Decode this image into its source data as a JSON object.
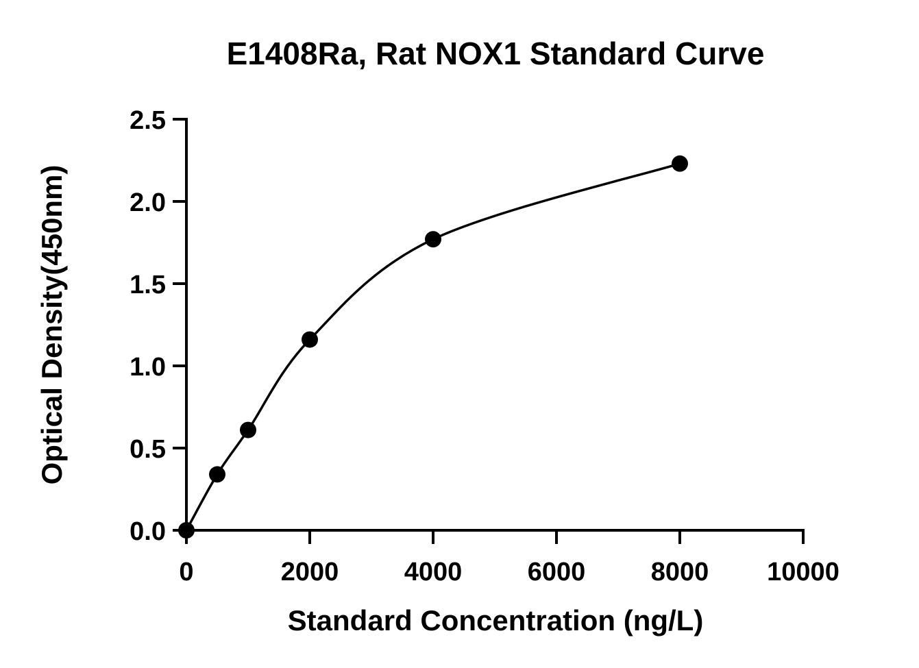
{
  "chart_data": {
    "type": "scatter",
    "title": "E1408Ra, Rat NOX1 Standard Curve",
    "xlabel": "Standard Concentration (ng/L)",
    "ylabel": "Optical Density(450nm)",
    "xlim": [
      0,
      10000
    ],
    "ylim": [
      0,
      2.5
    ],
    "xticks": [
      0,
      2000,
      4000,
      6000,
      8000,
      10000
    ],
    "yticks": [
      0.0,
      0.5,
      1.0,
      1.5,
      2.0,
      2.5
    ],
    "xtick_labels": [
      "0",
      "2000",
      "4000",
      "6000",
      "8000",
      "10000"
    ],
    "ytick_labels": [
      "0.0",
      "0.5",
      "1.0",
      "1.5",
      "2.0",
      "2.5"
    ],
    "grid": false,
    "fit_curve": "smooth",
    "series": [
      {
        "x": [
          0,
          500,
          1000,
          2000,
          4000,
          8000
        ],
        "y": [
          0.0,
          0.34,
          0.61,
          1.16,
          1.77,
          2.23
        ]
      }
    ],
    "colors": {
      "marker": "#000000",
      "curve": "#000000",
      "axes": "#000000"
    }
  }
}
